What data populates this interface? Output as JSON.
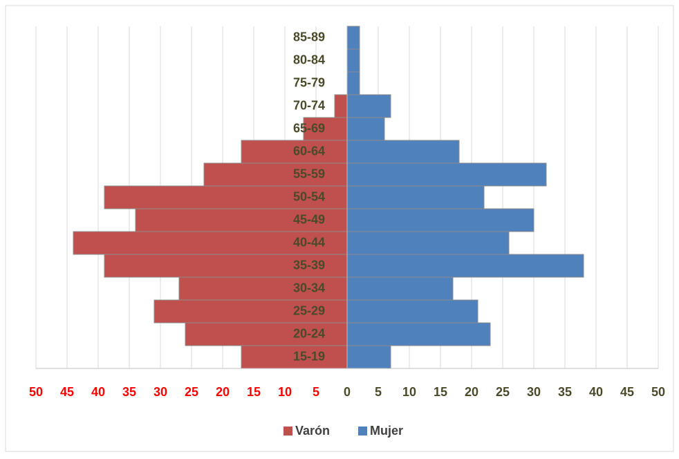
{
  "chart_data": {
    "type": "pyramid",
    "categories": [
      "15-19",
      "20-24",
      "25-29",
      "30-34",
      "35-39",
      "40-44",
      "45-49",
      "50-54",
      "55-59",
      "60-64",
      "65-69",
      "70-74",
      "75-79",
      "80-84",
      "85-89"
    ],
    "series": [
      {
        "name": "Varón",
        "color": "#c0504d",
        "values": [
          -17,
          -26,
          -31,
          -27,
          -39,
          -44,
          -34,
          -39,
          -23,
          -17,
          -7,
          -2,
          0,
          0,
          0
        ]
      },
      {
        "name": "Mujer",
        "color": "#4f81bd",
        "values": [
          7,
          23,
          21,
          17,
          38,
          26,
          30,
          22,
          32,
          18,
          6,
          7,
          2,
          2,
          2
        ]
      }
    ],
    "xlim": [
      -50,
      50
    ],
    "xticks": [
      {
        "value": -50,
        "label": "50"
      },
      {
        "value": -45,
        "label": "45"
      },
      {
        "value": -40,
        "label": "40"
      },
      {
        "value": -35,
        "label": "35"
      },
      {
        "value": -30,
        "label": "30"
      },
      {
        "value": -25,
        "label": "25"
      },
      {
        "value": -20,
        "label": "20"
      },
      {
        "value": -15,
        "label": "15"
      },
      {
        "value": -10,
        "label": "10"
      },
      {
        "value": -5,
        "label": "5"
      },
      0,
      5,
      10,
      15,
      20,
      25,
      30,
      35,
      40,
      45,
      50
    ],
    "negative_tick_color": "#ff0000",
    "tick_color": "#4a4a2a",
    "grid": true,
    "legend": "bottom"
  }
}
